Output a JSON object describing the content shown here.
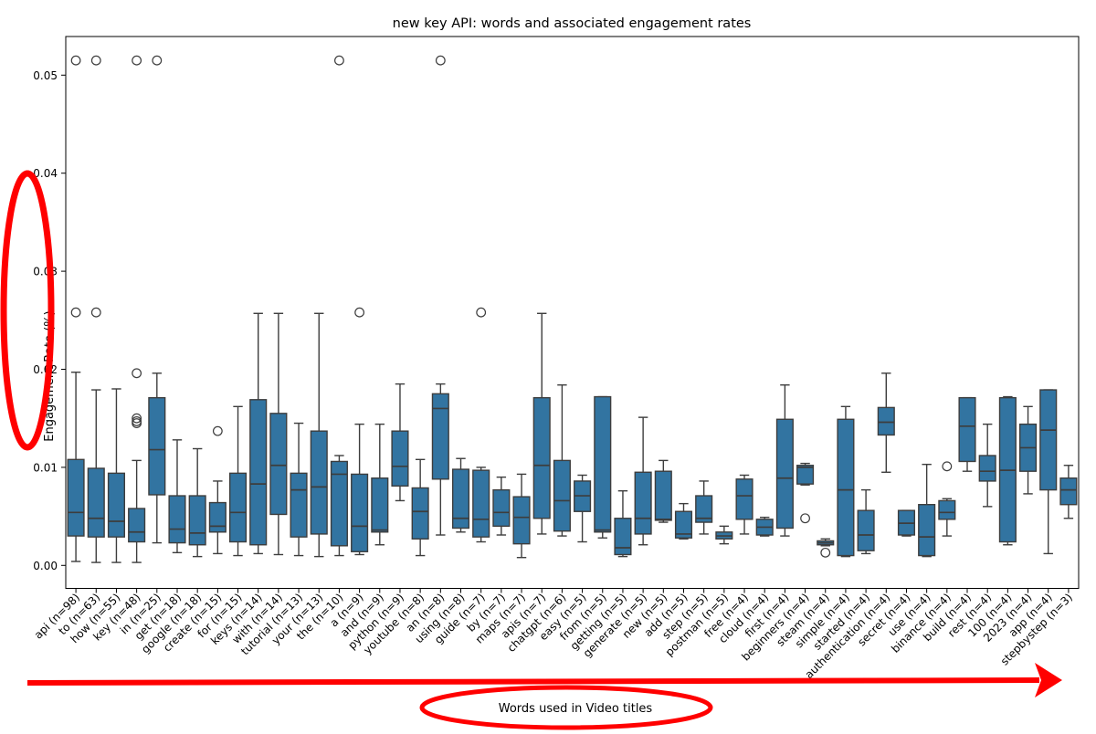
{
  "title": "new key API: words and associated engagement rates",
  "ylabel": "Engagement Rate (%)",
  "annotations": {
    "xaxis_callout": "Words used in Video titles"
  },
  "colors": {
    "box_fill": "#3274a1",
    "box_edge": "#3d3d3d",
    "axis": "#000000",
    "annotation_red": "#ff0000"
  },
  "chart_data": {
    "type": "boxplot",
    "title": "new key API: words and associated engagement rates",
    "ylabel": "Engagement Rate (%)",
    "xlabel_annotation": "Words used in Video titles",
    "ylim": [
      -0.0023,
      0.0539
    ],
    "ytick_values": [
      0.0,
      0.01,
      0.02,
      0.03,
      0.04,
      0.05
    ],
    "ytick_labels": [
      "0.00",
      "0.01",
      "0.02",
      "0.03",
      "0.04",
      "0.05"
    ],
    "grid": false,
    "series": [
      {
        "label": "api (n=98)",
        "whislo": 0.0004,
        "q1": 0.003,
        "med": 0.0054,
        "q3": 0.0108,
        "whishi": 0.0197,
        "fliers": [
          0.0258,
          0.0515
        ]
      },
      {
        "label": "to (n=63)",
        "whislo": 0.0003,
        "q1": 0.0029,
        "med": 0.0048,
        "q3": 0.0099,
        "whishi": 0.0179,
        "fliers": [
          0.0258,
          0.0515
        ]
      },
      {
        "label": "how (n=55)",
        "whislo": 0.0003,
        "q1": 0.0029,
        "med": 0.0045,
        "q3": 0.0094,
        "whishi": 0.018,
        "fliers": []
      },
      {
        "label": "key (n=48)",
        "whislo": 0.0003,
        "q1": 0.0024,
        "med": 0.0034,
        "q3": 0.0058,
        "whishi": 0.0107,
        "fliers": [
          0.0145,
          0.0147,
          0.015,
          0.0196,
          0.0515
        ]
      },
      {
        "label": "in (n=25)",
        "whislo": 0.0023,
        "q1": 0.0072,
        "med": 0.0118,
        "q3": 0.0171,
        "whishi": 0.0196,
        "fliers": [
          0.0515
        ]
      },
      {
        "label": "get (n=18)",
        "whislo": 0.0013,
        "q1": 0.0023,
        "med": 0.0037,
        "q3": 0.0071,
        "whishi": 0.0128,
        "fliers": []
      },
      {
        "label": "google (n=18)",
        "whislo": 0.0009,
        "q1": 0.0021,
        "med": 0.0033,
        "q3": 0.0071,
        "whishi": 0.0119,
        "fliers": []
      },
      {
        "label": "create (n=15)",
        "whislo": 0.0012,
        "q1": 0.0034,
        "med": 0.004,
        "q3": 0.0064,
        "whishi": 0.0086,
        "fliers": [
          0.0137
        ]
      },
      {
        "label": "for (n=15)",
        "whislo": 0.001,
        "q1": 0.0024,
        "med": 0.0054,
        "q3": 0.0094,
        "whishi": 0.0162,
        "fliers": []
      },
      {
        "label": "keys (n=14)",
        "whislo": 0.0012,
        "q1": 0.0021,
        "med": 0.0083,
        "q3": 0.0169,
        "whishi": 0.0257,
        "fliers": []
      },
      {
        "label": "with (n=14)",
        "whislo": 0.0011,
        "q1": 0.0052,
        "med": 0.0102,
        "q3": 0.0155,
        "whishi": 0.0257,
        "fliers": []
      },
      {
        "label": "tutorial (n=13)",
        "whislo": 0.001,
        "q1": 0.0029,
        "med": 0.0077,
        "q3": 0.0094,
        "whishi": 0.0145,
        "fliers": []
      },
      {
        "label": "your (n=13)",
        "whislo": 0.0009,
        "q1": 0.0032,
        "med": 0.008,
        "q3": 0.0137,
        "whishi": 0.0257,
        "fliers": []
      },
      {
        "label": "the (n=10)",
        "whislo": 0.001,
        "q1": 0.002,
        "med": 0.0093,
        "q3": 0.0106,
        "whishi": 0.0112,
        "fliers": [
          0.0515
        ]
      },
      {
        "label": "a (n=9)",
        "whislo": 0.0011,
        "q1": 0.0014,
        "med": 0.004,
        "q3": 0.0093,
        "whishi": 0.0144,
        "fliers": [
          0.0258
        ]
      },
      {
        "label": "and (n=9)",
        "whislo": 0.0021,
        "q1": 0.0034,
        "med": 0.0036,
        "q3": 0.0089,
        "whishi": 0.0144,
        "fliers": []
      },
      {
        "label": "python (n=9)",
        "whislo": 0.0066,
        "q1": 0.0081,
        "med": 0.0101,
        "q3": 0.0137,
        "whishi": 0.0185,
        "fliers": []
      },
      {
        "label": "youtube (n=8)",
        "whislo": 0.001,
        "q1": 0.0027,
        "med": 0.0055,
        "q3": 0.0079,
        "whishi": 0.0108,
        "fliers": []
      },
      {
        "label": "an (n=8)",
        "whislo": 0.0031,
        "q1": 0.0088,
        "med": 0.016,
        "q3": 0.0175,
        "whishi": 0.0185,
        "fliers": [
          0.0515
        ]
      },
      {
        "label": "using (n=8)",
        "whislo": 0.0034,
        "q1": 0.0038,
        "med": 0.0048,
        "q3": 0.0098,
        "whishi": 0.0109,
        "fliers": []
      },
      {
        "label": "guide (n=7)",
        "whislo": 0.0024,
        "q1": 0.0029,
        "med": 0.0047,
        "q3": 0.0097,
        "whishi": 0.01,
        "fliers": [
          0.0258
        ]
      },
      {
        "label": "by (n=7)",
        "whislo": 0.0031,
        "q1": 0.004,
        "med": 0.0054,
        "q3": 0.0077,
        "whishi": 0.009,
        "fliers": []
      },
      {
        "label": "maps (n=7)",
        "whislo": 0.0008,
        "q1": 0.0022,
        "med": 0.0049,
        "q3": 0.007,
        "whishi": 0.0093,
        "fliers": []
      },
      {
        "label": "apis (n=7)",
        "whislo": 0.0032,
        "q1": 0.0048,
        "med": 0.0102,
        "q3": 0.0171,
        "whishi": 0.0257,
        "fliers": []
      },
      {
        "label": "chatgpt (n=6)",
        "whislo": 0.003,
        "q1": 0.0035,
        "med": 0.0066,
        "q3": 0.0107,
        "whishi": 0.0184,
        "fliers": []
      },
      {
        "label": "easy (n=5)",
        "whislo": 0.0024,
        "q1": 0.0055,
        "med": 0.0071,
        "q3": 0.0086,
        "whishi": 0.0092,
        "fliers": []
      },
      {
        "label": "from (n=5)",
        "whislo": 0.0028,
        "q1": 0.0034,
        "med": 0.0036,
        "q3": 0.0172,
        "whishi": 0.0172,
        "fliers": []
      },
      {
        "label": "getting (n=5)",
        "whislo": 0.0009,
        "q1": 0.0011,
        "med": 0.0018,
        "q3": 0.0048,
        "whishi": 0.0076,
        "fliers": []
      },
      {
        "label": "generate (n=5)",
        "whislo": 0.0021,
        "q1": 0.0032,
        "med": 0.0048,
        "q3": 0.0095,
        "whishi": 0.0151,
        "fliers": []
      },
      {
        "label": "new (n=5)",
        "whislo": 0.0044,
        "q1": 0.0046,
        "med": 0.0047,
        "q3": 0.0096,
        "whishi": 0.0107,
        "fliers": []
      },
      {
        "label": "add (n=5)",
        "whislo": 0.0027,
        "q1": 0.0028,
        "med": 0.0032,
        "q3": 0.0055,
        "whishi": 0.0063,
        "fliers": []
      },
      {
        "label": "step (n=5)",
        "whislo": 0.0032,
        "q1": 0.0044,
        "med": 0.0048,
        "q3": 0.0071,
        "whishi": 0.0086,
        "fliers": []
      },
      {
        "label": "postman (n=5)",
        "whislo": 0.0022,
        "q1": 0.0027,
        "med": 0.003,
        "q3": 0.0034,
        "whishi": 0.004,
        "fliers": []
      },
      {
        "label": "free (n=4)",
        "whislo": 0.0032,
        "q1": 0.0047,
        "med": 0.0071,
        "q3": 0.0088,
        "whishi": 0.0092,
        "fliers": []
      },
      {
        "label": "cloud (n=4)",
        "whislo": 0.003,
        "q1": 0.0031,
        "med": 0.0039,
        "q3": 0.0047,
        "whishi": 0.0049,
        "fliers": []
      },
      {
        "label": "first (n=4)",
        "whislo": 0.003,
        "q1": 0.0038,
        "med": 0.0089,
        "q3": 0.0149,
        "whishi": 0.0184,
        "fliers": []
      },
      {
        "label": "beginners (n=4)",
        "whislo": 0.0082,
        "q1": 0.0083,
        "med": 0.01,
        "q3": 0.0102,
        "whishi": 0.0104,
        "fliers": [
          0.0048
        ]
      },
      {
        "label": "steam (n=4)",
        "whislo": 0.002,
        "q1": 0.0021,
        "med": 0.0023,
        "q3": 0.0025,
        "whishi": 0.0027,
        "fliers": [
          0.0013
        ]
      },
      {
        "label": "simple (n=4)",
        "whislo": 0.0009,
        "q1": 0.001,
        "med": 0.0077,
        "q3": 0.0149,
        "whishi": 0.0162,
        "fliers": []
      },
      {
        "label": "started (n=4)",
        "whislo": 0.0012,
        "q1": 0.0015,
        "med": 0.0031,
        "q3": 0.0056,
        "whishi": 0.0077,
        "fliers": []
      },
      {
        "label": "authentication (n=4)",
        "whislo": 0.0095,
        "q1": 0.0133,
        "med": 0.0146,
        "q3": 0.0161,
        "whishi": 0.0196,
        "fliers": []
      },
      {
        "label": "secret (n=4)",
        "whislo": 0.003,
        "q1": 0.0031,
        "med": 0.0043,
        "q3": 0.0056,
        "whishi": 0.0056,
        "fliers": []
      },
      {
        "label": "use (n=4)",
        "whislo": 0.0009,
        "q1": 0.001,
        "med": 0.0029,
        "q3": 0.0062,
        "whishi": 0.0103,
        "fliers": []
      },
      {
        "label": "binance (n=4)",
        "whislo": 0.003,
        "q1": 0.0047,
        "med": 0.0054,
        "q3": 0.0066,
        "whishi": 0.0068,
        "fliers": [
          0.0101
        ]
      },
      {
        "label": "build (n=4)",
        "whislo": 0.0096,
        "q1": 0.0106,
        "med": 0.0142,
        "q3": 0.0171,
        "whishi": 0.0171,
        "fliers": []
      },
      {
        "label": "rest (n=4)",
        "whislo": 0.006,
        "q1": 0.0086,
        "med": 0.0096,
        "q3": 0.0112,
        "whishi": 0.0144,
        "fliers": []
      },
      {
        "label": "100 (n=4)",
        "whislo": 0.0021,
        "q1": 0.0024,
        "med": 0.0097,
        "q3": 0.0171,
        "whishi": 0.0172,
        "fliers": []
      },
      {
        "label": "2023 (n=4)",
        "whislo": 0.0073,
        "q1": 0.0096,
        "med": 0.012,
        "q3": 0.0144,
        "whishi": 0.0162,
        "fliers": []
      },
      {
        "label": "app (n=4)",
        "whislo": 0.0012,
        "q1": 0.0077,
        "med": 0.0138,
        "q3": 0.0179,
        "whishi": 0.0179,
        "fliers": []
      },
      {
        "label": "stepbystep (n=3)",
        "whislo": 0.0048,
        "q1": 0.0062,
        "med": 0.0077,
        "q3": 0.0089,
        "whishi": 0.0102,
        "fliers": []
      }
    ]
  }
}
